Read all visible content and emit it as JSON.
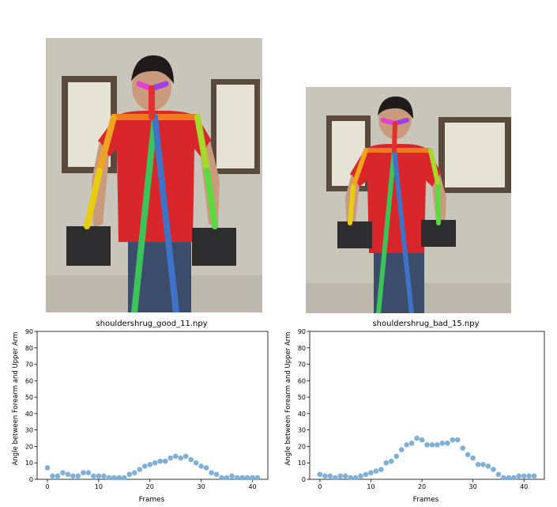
{
  "chart_data": [
    {
      "type": "scatter",
      "title": "shouldershrug_good_11.npy",
      "xlabel": "Frames",
      "ylabel": "Angle between Forearm and Upper Arm",
      "xlim": [
        -2,
        43
      ],
      "ylim": [
        0,
        90
      ],
      "xticks": [
        0,
        10,
        20,
        30,
        40
      ],
      "yticks": [
        0,
        10,
        20,
        30,
        40,
        50,
        60,
        70,
        80,
        90
      ],
      "grid": false,
      "color": "#7eb0d8",
      "x": [
        0,
        1,
        2,
        3,
        4,
        5,
        6,
        7,
        8,
        9,
        10,
        11,
        12,
        13,
        14,
        15,
        16,
        17,
        18,
        19,
        20,
        21,
        22,
        23,
        24,
        25,
        26,
        27,
        28,
        29,
        30,
        31,
        32,
        33,
        34,
        35,
        36,
        37,
        38,
        39,
        40,
        41
      ],
      "y": [
        7,
        2,
        2,
        4,
        3,
        2,
        2,
        4,
        4,
        2,
        2,
        2,
        1,
        1,
        1,
        1,
        3,
        4,
        6,
        8,
        9,
        10,
        11,
        11,
        13,
        14,
        13,
        14,
        12,
        10,
        8,
        7,
        4,
        3,
        1,
        1,
        2,
        1,
        1,
        1,
        1,
        1
      ]
    },
    {
      "type": "scatter",
      "title": "shouldershrug_bad_15.npy",
      "xlabel": "Frames",
      "ylabel": "Angle between Forearm and Upper Arm",
      "xlim": [
        -2,
        44
      ],
      "ylim": [
        0,
        90
      ],
      "xticks": [
        0,
        10,
        20,
        30,
        40
      ],
      "yticks": [
        0,
        10,
        20,
        30,
        40,
        50,
        60,
        70,
        80,
        90
      ],
      "grid": false,
      "color": "#7eb0d8",
      "x": [
        0,
        1,
        2,
        3,
        4,
        5,
        6,
        7,
        8,
        9,
        10,
        11,
        12,
        13,
        14,
        15,
        16,
        17,
        18,
        19,
        20,
        21,
        22,
        23,
        24,
        25,
        26,
        27,
        28,
        29,
        30,
        31,
        32,
        33,
        34,
        35,
        36,
        37,
        38,
        39,
        40,
        41,
        42
      ],
      "y": [
        3,
        2,
        2,
        1,
        2,
        2,
        1,
        1,
        2,
        3,
        4,
        5,
        6,
        10,
        11,
        14,
        18,
        21,
        22,
        25,
        24,
        21,
        21,
        21,
        22,
        22,
        24,
        24,
        19,
        15,
        13,
        9,
        9,
        8,
        6,
        3,
        1,
        1,
        1,
        2,
        2,
        2,
        2
      ]
    }
  ]
}
